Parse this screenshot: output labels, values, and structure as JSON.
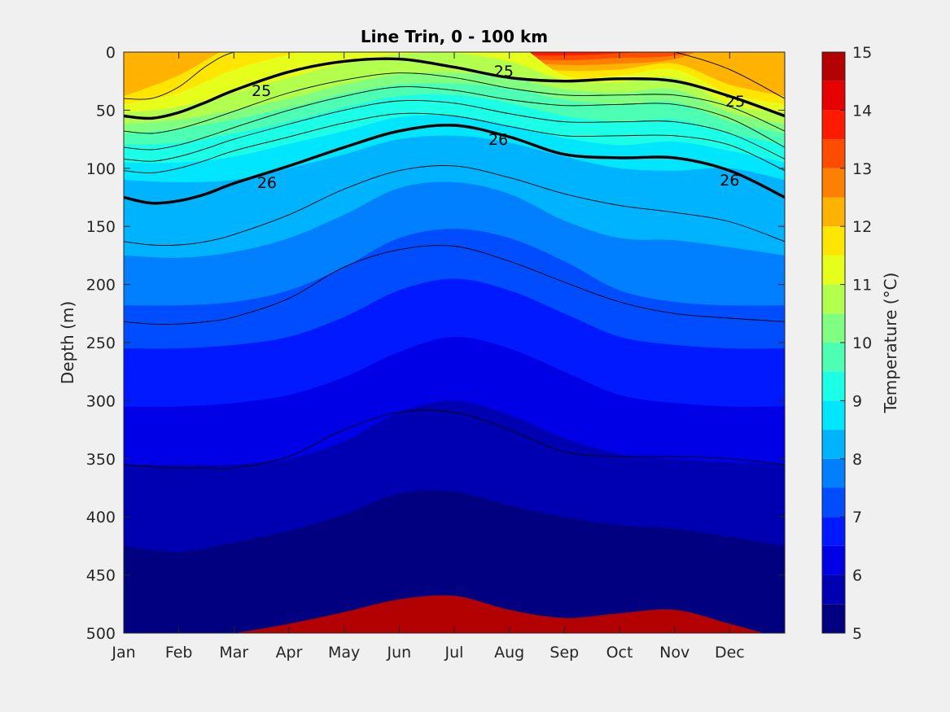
{
  "chart_data": {
    "type": "heatmap",
    "subtype": "filled-contour",
    "title": "Line Trin, 0 - 100 km",
    "xlabel": "",
    "ylabel": "Depth (m)",
    "x_ticks": [
      "Jan",
      "Feb",
      "Mar",
      "Apr",
      "May",
      "Jun",
      "Jul",
      "Aug",
      "Sep",
      "Oct",
      "Nov",
      "Dec"
    ],
    "xlim": [
      0,
      12
    ],
    "ylim": [
      0,
      500
    ],
    "y_reversed": true,
    "y_ticks": [
      "0",
      "50",
      "100",
      "150",
      "200",
      "250",
      "300",
      "350",
      "400",
      "450",
      "500"
    ],
    "colorbar": {
      "label": "Temperature (°C)",
      "range": [
        5,
        15
      ],
      "ticks": [
        "5",
        "6",
        "7",
        "8",
        "9",
        "10",
        "11",
        "12",
        "13",
        "14",
        "15"
      ],
      "levels": [
        5,
        5.5,
        6,
        6.5,
        7,
        7.5,
        8,
        8.5,
        9,
        9.5,
        10,
        10.5,
        11,
        11.5,
        12,
        12.5,
        13,
        13.5,
        14,
        14.5,
        15
      ],
      "colors": [
        "#000080",
        "#0000b3",
        "#0000e6",
        "#0019ff",
        "#004cff",
        "#0080ff",
        "#00b3ff",
        "#00e6ff",
        "#1affe6",
        "#4dffb3",
        "#80ff80",
        "#b3ff4d",
        "#e6ff1a",
        "#ffe600",
        "#ffb300",
        "#ff8000",
        "#ff4d00",
        "#ff1a00",
        "#e60000",
        "#b30000"
      ]
    },
    "temperature_isotherms": [
      {
        "temp": 14.25,
        "depth": [
          -10,
          -10,
          -10,
          -10,
          -10,
          -10,
          -10,
          -4,
          -2,
          -4,
          -10,
          -10,
          -10
        ]
      },
      {
        "temp": 13.75,
        "depth": [
          -10,
          -10,
          -10,
          -10,
          -10,
          -10,
          -10,
          1,
          3,
          1,
          -2,
          -10,
          -10
        ]
      },
      {
        "temp": 13.25,
        "depth": [
          -10,
          -10,
          -10,
          -10,
          -10,
          -10,
          -10,
          4,
          7,
          5,
          3,
          -10,
          -10
        ]
      },
      {
        "temp": 12.75,
        "depth": [
          -10,
          -10,
          -10,
          -10,
          -10,
          -10,
          -10,
          7,
          11,
          10,
          6,
          -10,
          -10
        ]
      },
      {
        "temp": 12.25,
        "depth": [
          38,
          20,
          -5,
          -10,
          -10,
          -10,
          -10,
          10,
          16,
          15,
          10,
          28,
          38
        ]
      },
      {
        "temp": 11.75,
        "depth": [
          45,
          35,
          15,
          2,
          -10,
          -10,
          -10,
          -10,
          20,
          20,
          15,
          36,
          45
        ]
      },
      {
        "temp": 11.25,
        "depth": [
          52,
          47,
          35,
          22,
          10,
          2,
          1,
          8,
          24,
          26,
          22,
          45,
          52
        ]
      },
      {
        "temp": 10.75,
        "depth": [
          62,
          58,
          50,
          40,
          28,
          19,
          18,
          22,
          32,
          35,
          32,
          52,
          62
        ]
      },
      {
        "temp": 10.25,
        "depth": [
          70,
          66,
          58,
          48,
          36,
          28,
          27,
          31,
          41,
          45,
          43,
          60,
          70
        ]
      },
      {
        "temp": 9.75,
        "depth": [
          80,
          78,
          70,
          60,
          48,
          38,
          37,
          44,
          55,
          60,
          58,
          70,
          80
        ]
      },
      {
        "temp": 9.25,
        "depth": [
          95,
          95,
          90,
          79,
          68,
          56,
          55,
          63,
          74,
          80,
          77,
          85,
          95
        ]
      },
      {
        "temp": 8.75,
        "depth": [
          110,
          112,
          110,
          100,
          88,
          75,
          72,
          78,
          90,
          100,
          102,
          100,
          110
        ]
      },
      {
        "temp": 8.25,
        "depth": [
          175,
          177,
          172,
          160,
          140,
          117,
          112,
          122,
          145,
          160,
          162,
          168,
          175
        ]
      },
      {
        "temp": 7.75,
        "depth": [
          218,
          218,
          215,
          205,
          185,
          160,
          152,
          160,
          180,
          205,
          215,
          218,
          218
        ]
      },
      {
        "temp": 7.25,
        "depth": [
          255,
          255,
          252,
          245,
          228,
          205,
          195,
          205,
          225,
          245,
          252,
          255,
          255
        ]
      },
      {
        "temp": 6.75,
        "depth": [
          305,
          305,
          302,
          295,
          280,
          258,
          245,
          255,
          275,
          295,
          302,
          305,
          305
        ]
      },
      {
        "temp": 6.25,
        "depth": [
          355,
          355,
          355,
          350,
          335,
          310,
          300,
          312,
          332,
          346,
          350,
          353,
          355
        ]
      },
      {
        "temp": 5.75,
        "depth": [
          425,
          430,
          422,
          412,
          398,
          380,
          378,
          390,
          400,
          407,
          410,
          417,
          425
        ]
      },
      {
        "temp": 5.25,
        "depth": [
          505,
          505,
          500,
          492,
          482,
          471,
          468,
          480,
          487,
          483,
          480,
          492,
          505
        ]
      }
    ],
    "density_contours": [
      {
        "value": "",
        "bold": false,
        "x": [
          0,
          0.5,
          1,
          1.5,
          2,
          3,
          4,
          5,
          6,
          7,
          8,
          9,
          10,
          11,
          12
        ],
        "depth": [
          40,
          40,
          30,
          12,
          0,
          -10,
          -10,
          -10,
          -10,
          -10,
          -10,
          -10,
          0,
          15,
          40
        ]
      },
      {
        "value": "25",
        "bold": true,
        "x": [
          0,
          0.5,
          1,
          1.5,
          2,
          3,
          4,
          5,
          6,
          7,
          8,
          9,
          10,
          11,
          12
        ],
        "depth": [
          55,
          57,
          52,
          43,
          33,
          17,
          8,
          6,
          13,
          22,
          25,
          23,
          25,
          38,
          55
        ]
      },
      {
        "value": "",
        "bold": false,
        "x": [
          0,
          0.5,
          1,
          1.5,
          2,
          3,
          4,
          5,
          6,
          7,
          8,
          9,
          10,
          11,
          12
        ],
        "depth": [
          68,
          70,
          66,
          59,
          51,
          35,
          24,
          18,
          22,
          31,
          37,
          37,
          37,
          47,
          68
        ]
      },
      {
        "value": "",
        "bold": false,
        "x": [
          0,
          0.5,
          1,
          1.5,
          2,
          3,
          4,
          5,
          6,
          7,
          8,
          9,
          10,
          11,
          12
        ],
        "depth": [
          82,
          84,
          80,
          73,
          65,
          50,
          38,
          30,
          33,
          41,
          46,
          45,
          45,
          57,
          82
        ]
      },
      {
        "value": "",
        "bold": false,
        "x": [
          0,
          0.5,
          1,
          1.5,
          2,
          3,
          4,
          5,
          6,
          7,
          8,
          9,
          10,
          11,
          12
        ],
        "depth": [
          92,
          94,
          90,
          83,
          75,
          62,
          50,
          42,
          44,
          53,
          60,
          60,
          60,
          70,
          92
        ]
      },
      {
        "value": "",
        "bold": false,
        "x": [
          0,
          0.5,
          1,
          1.5,
          2,
          3,
          4,
          5,
          6,
          7,
          8,
          9,
          10,
          11,
          12
        ],
        "depth": [
          102,
          104,
          100,
          93,
          85,
          73,
          61,
          53,
          55,
          64,
          72,
          72,
          72,
          80,
          102
        ]
      },
      {
        "value": "26",
        "bold": true,
        "x": [
          0,
          0.5,
          1,
          1.5,
          2,
          3,
          4,
          5,
          6,
          7,
          8,
          9,
          10,
          11,
          12
        ],
        "depth": [
          125,
          130,
          128,
          122,
          113,
          98,
          82,
          68,
          63,
          73,
          88,
          91,
          91,
          102,
          125
        ]
      },
      {
        "value": "",
        "bold": false,
        "x": [
          0,
          0.5,
          1,
          1.5,
          2,
          3,
          4,
          5,
          6,
          7,
          8,
          9,
          10,
          11,
          12
        ],
        "depth": [
          163,
          166,
          166,
          163,
          157,
          140,
          118,
          102,
          98,
          108,
          122,
          132,
          138,
          146,
          163
        ]
      },
      {
        "value": "",
        "bold": false,
        "x": [
          0,
          0.5,
          1,
          1.5,
          2,
          3,
          4,
          5,
          6,
          7,
          8,
          9,
          10,
          11,
          12
        ],
        "depth": [
          232,
          234,
          234,
          232,
          228,
          212,
          185,
          170,
          167,
          180,
          198,
          215,
          225,
          229,
          232
        ]
      },
      {
        "value": "",
        "bold": false,
        "x": [
          0,
          0.5,
          1,
          1.5,
          2,
          3,
          4,
          5,
          6,
          7,
          8,
          9,
          10,
          11,
          12
        ],
        "depth": [
          355,
          357,
          358,
          358,
          358,
          348,
          325,
          310,
          310,
          325,
          344,
          348,
          348,
          350,
          355
        ]
      }
    ],
    "contour_labels": [
      {
        "text": "25",
        "x": 2.5,
        "depth": 33
      },
      {
        "text": "25",
        "x": 6.9,
        "depth": 16
      },
      {
        "text": "25",
        "x": 11.1,
        "depth": 42
      },
      {
        "text": "26",
        "x": 2.6,
        "depth": 112
      },
      {
        "text": "26",
        "x": 6.8,
        "depth": 75
      },
      {
        "text": "26",
        "x": 11.0,
        "depth": 110
      }
    ]
  }
}
